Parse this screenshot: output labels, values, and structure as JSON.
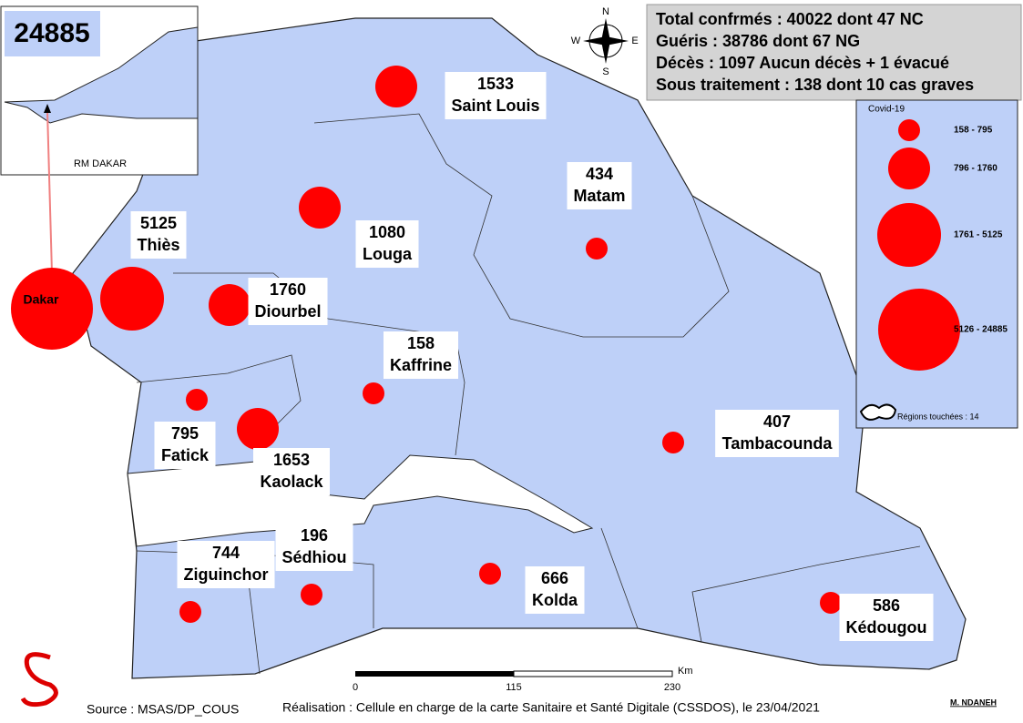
{
  "inset": {
    "label": "RM DAKAR"
  },
  "summary": [
    "Total confrmés : 40022 dont 47 NC",
    "Guéris : 38786 dont 67 NG",
    "Décès : 1097 Aucun décès + 1 évacué",
    "Sous traitement : 138 dont 10 cas graves"
  ],
  "regions": [
    {
      "name": "Dakar",
      "value": 24885
    },
    {
      "name": "Thiès",
      "value": 5125
    },
    {
      "name": "Diourbel",
      "value": 1760
    },
    {
      "name": "Saint Louis",
      "value": 1533
    },
    {
      "name": "Louga",
      "value": 1080
    },
    {
      "name": "Matam",
      "value": 434
    },
    {
      "name": "Kaffrine",
      "value": 158
    },
    {
      "name": "Fatick",
      "value": 795
    },
    {
      "name": "Kaolack",
      "value": 1653
    },
    {
      "name": "Tambacounda",
      "value": 407
    },
    {
      "name": "Ziguinchor",
      "value": 744
    },
    {
      "name": "Sédhiou",
      "value": 196
    },
    {
      "name": "Kolda",
      "value": 666
    },
    {
      "name": "Kédougou",
      "value": 586
    }
  ],
  "legend": {
    "title": "Covid-19",
    "classes": [
      {
        "min": 158,
        "max": 795,
        "label": "158 - 795"
      },
      {
        "min": 796,
        "max": 1760,
        "label": "796 - 1760"
      },
      {
        "min": 1761,
        "max": 5125,
        "label": "1761 - 5125"
      },
      {
        "min": 5126,
        "max": 24885,
        "label": "5126 - 24885"
      }
    ],
    "note": "Régions touchées : 14"
  },
  "compass": {
    "n": "N",
    "e": "E",
    "s": "S",
    "w": "W"
  },
  "scale": {
    "ticks": [
      "0",
      "115",
      "230"
    ],
    "unit": "Km"
  },
  "footer": {
    "source": "Source : MSAS/DP_COUS",
    "credit": "Réalisation : Cellule en charge de la carte Sanitaire et Santé Digitale (CSSDOS), le 23/04/2021",
    "author": "M. NDANEH"
  }
}
